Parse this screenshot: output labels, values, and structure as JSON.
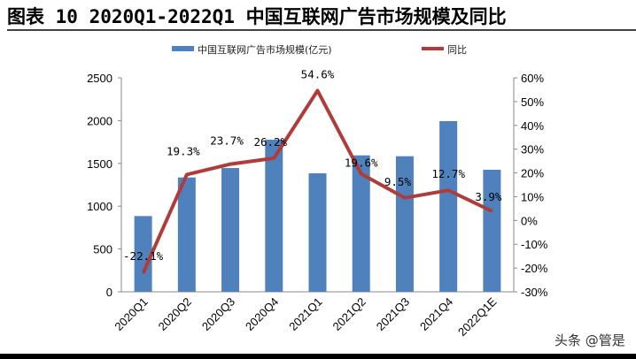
{
  "chart_data": {
    "type": "bar+line",
    "title": "图表 10 2020Q1-2022Q1 中国互联网广告市场规模及同比",
    "categories": [
      "2020Q1",
      "2020Q2",
      "2020Q3",
      "2020Q4",
      "2021Q1",
      "2021Q2",
      "2021Q3",
      "2021Q4",
      "2022Q1E"
    ],
    "series": [
      {
        "name": "中国互联网广告市场规模(亿元)",
        "type": "bar",
        "axis": "left",
        "color": "#4f81bd",
        "values": [
          885,
          1336,
          1446,
          1777,
          1384,
          1594,
          1584,
          1994,
          1426
        ]
      },
      {
        "name": "同比",
        "type": "line",
        "axis": "right",
        "color": "#b03c3a",
        "values": [
          -22.1,
          19.3,
          23.7,
          26.2,
          54.6,
          19.6,
          9.5,
          12.7,
          3.9
        ],
        "labels": [
          "-22.1%",
          "19.3%",
          "23.7%",
          "26.2%",
          "54.6%",
          "19.6%",
          "9.5%",
          "12.7%",
          "3.9%"
        ]
      }
    ],
    "ylim_left": [
      0,
      2500
    ],
    "yticks_left": [
      "0",
      "500",
      "1000",
      "1500",
      "2000",
      "2500"
    ],
    "ylim_right": [
      -30,
      60
    ],
    "yticks_right": [
      "-30%",
      "-20%",
      "-10%",
      "0%",
      "10%",
      "20%",
      "30%",
      "40%",
      "50%",
      "60%"
    ],
    "grid": false,
    "legend_position": "top"
  },
  "watermark": "头条 @管是"
}
